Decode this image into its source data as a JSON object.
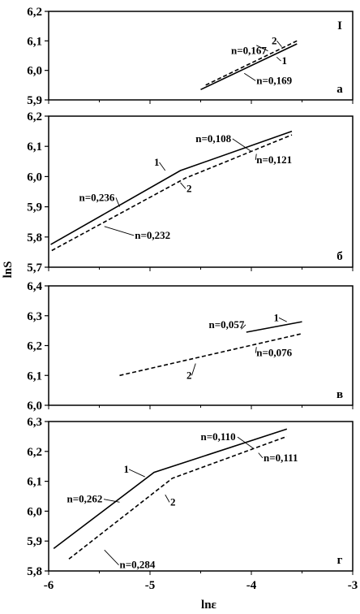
{
  "chart_data": [
    {
      "type": "line",
      "panel_label": "а",
      "roman_label": "I",
      "ylim": [
        5.9,
        6.2
      ],
      "yticks": [
        "5,9",
        "6,0",
        "6,1",
        "6,2"
      ],
      "series": [
        {
          "values": [
            [
              -4.5,
              5.935
            ],
            [
              -3.55,
              6.09
            ]
          ],
          "style": "solid"
        },
        {
          "values": [
            [
              -4.45,
              5.95
            ],
            [
              -3.55,
              6.1
            ]
          ],
          "style": "dashed"
        }
      ],
      "annotations": [
        {
          "text": "n=0,167",
          "x": -4.2,
          "y": 6.066,
          "lx": -3.95,
          "ly": 6.085
        },
        {
          "text": "n=0,169",
          "x": -3.95,
          "y": 5.965,
          "lx": -4.07,
          "ly": 5.99
        },
        {
          "text": "1",
          "x": -3.7,
          "y": 6.032,
          "lx": -3.75,
          "ly": 6.045
        },
        {
          "text": "2",
          "x": -3.8,
          "y": 6.1,
          "lx": -3.7,
          "ly": 6.08
        }
      ]
    },
    {
      "type": "line",
      "panel_label": "б",
      "ylim": [
        5.7,
        6.2
      ],
      "yticks": [
        "5,7",
        "5,8",
        "5,9",
        "6,0",
        "6,1",
        "6,2"
      ],
      "series": [
        {
          "values": [
            [
              -5.98,
              5.775
            ],
            [
              -4.7,
              6.02
            ],
            [
              -3.6,
              6.15
            ]
          ],
          "style": "solid"
        },
        {
          "values": [
            [
              -5.97,
              5.755
            ],
            [
              -4.65,
              5.995
            ],
            [
              -3.6,
              6.138
            ]
          ],
          "style": "dashed"
        }
      ],
      "annotations": [
        {
          "text": "n=0,108",
          "x": -4.55,
          "y": 6.125,
          "lx": -4.0,
          "ly": 6.083
        },
        {
          "text": "n=0,121",
          "x": -3.95,
          "y": 6.055,
          "lx": -3.95,
          "ly": 6.075
        },
        {
          "text": "n=0,236",
          "x": -5.7,
          "y": 5.93,
          "lx": -5.3,
          "ly": 5.9
        },
        {
          "text": "n=0,232",
          "x": -5.15,
          "y": 5.805,
          "lx": -5.45,
          "ly": 5.835
        },
        {
          "text": "1",
          "x": -4.96,
          "y": 6.047,
          "lx": -4.85,
          "ly": 6.02
        },
        {
          "text": "2",
          "x": -4.64,
          "y": 5.96,
          "lx": -4.7,
          "ly": 5.98
        }
      ]
    },
    {
      "type": "line",
      "panel_label": "в",
      "ylim": [
        6.0,
        6.4
      ],
      "yticks": [
        "6,0",
        "6,1",
        "6,2",
        "6,3",
        "6,4"
      ],
      "series": [
        {
          "values": [
            [
              -4.05,
              6.245
            ],
            [
              -3.5,
              6.28
            ]
          ],
          "style": "solid"
        },
        {
          "values": [
            [
              -5.3,
              6.1
            ],
            [
              -3.5,
              6.24
            ]
          ],
          "style": "dashed"
        }
      ],
      "annotations": [
        {
          "text": "n=0,057",
          "x": -4.42,
          "y": 6.27,
          "lx": -4.1,
          "ly": 6.255
        },
        {
          "text": "n=0,076",
          "x": -3.95,
          "y": 6.175,
          "lx": -3.95,
          "ly": 6.195
        },
        {
          "text": "1",
          "x": -3.78,
          "y": 6.293,
          "lx": -3.65,
          "ly": 6.28
        },
        {
          "text": "2",
          "x": -4.64,
          "y": 6.1,
          "lx": -4.55,
          "ly": 6.14
        }
      ]
    },
    {
      "type": "line",
      "panel_label": "г",
      "ylim": [
        5.8,
        6.3
      ],
      "yticks": [
        "5,8",
        "5,9",
        "6,0",
        "6,1",
        "6,2",
        "6,3"
      ],
      "series": [
        {
          "values": [
            [
              -5.95,
              5.875
            ],
            [
              -4.96,
              6.13
            ],
            [
              -3.65,
              6.275
            ]
          ],
          "style": "solid"
        },
        {
          "values": [
            [
              -5.8,
              5.84
            ],
            [
              -4.78,
              6.11
            ],
            [
              -3.65,
              6.25
            ]
          ],
          "style": "dashed"
        }
      ],
      "annotations": [
        {
          "text": "n=0,110",
          "x": -4.5,
          "y": 6.248,
          "lx": -3.98,
          "ly": 6.21
        },
        {
          "text": "n=0,111",
          "x": -3.88,
          "y": 6.178,
          "lx": -3.93,
          "ly": 6.195
        },
        {
          "text": "n=0,262",
          "x": -5.82,
          "y": 6.04,
          "lx": -5.3,
          "ly": 6.03
        },
        {
          "text": "n=0,284",
          "x": -5.3,
          "y": 5.82,
          "lx": -5.45,
          "ly": 5.87
        },
        {
          "text": "1",
          "x": -5.26,
          "y": 6.14,
          "lx": -5.05,
          "ly": 6.115
        },
        {
          "text": "2",
          "x": -4.8,
          "y": 6.03,
          "lx": -4.85,
          "ly": 6.055
        }
      ]
    }
  ],
  "xaxis": {
    "label": "lnε",
    "xlim": [
      -6,
      -3
    ],
    "ticks": [
      {
        "value": -6,
        "text": "-6"
      },
      {
        "value": -5,
        "text": "-5"
      },
      {
        "value": -4,
        "text": "-4"
      },
      {
        "value": -3,
        "text": "-3"
      }
    ]
  },
  "ylabel": "lnS"
}
